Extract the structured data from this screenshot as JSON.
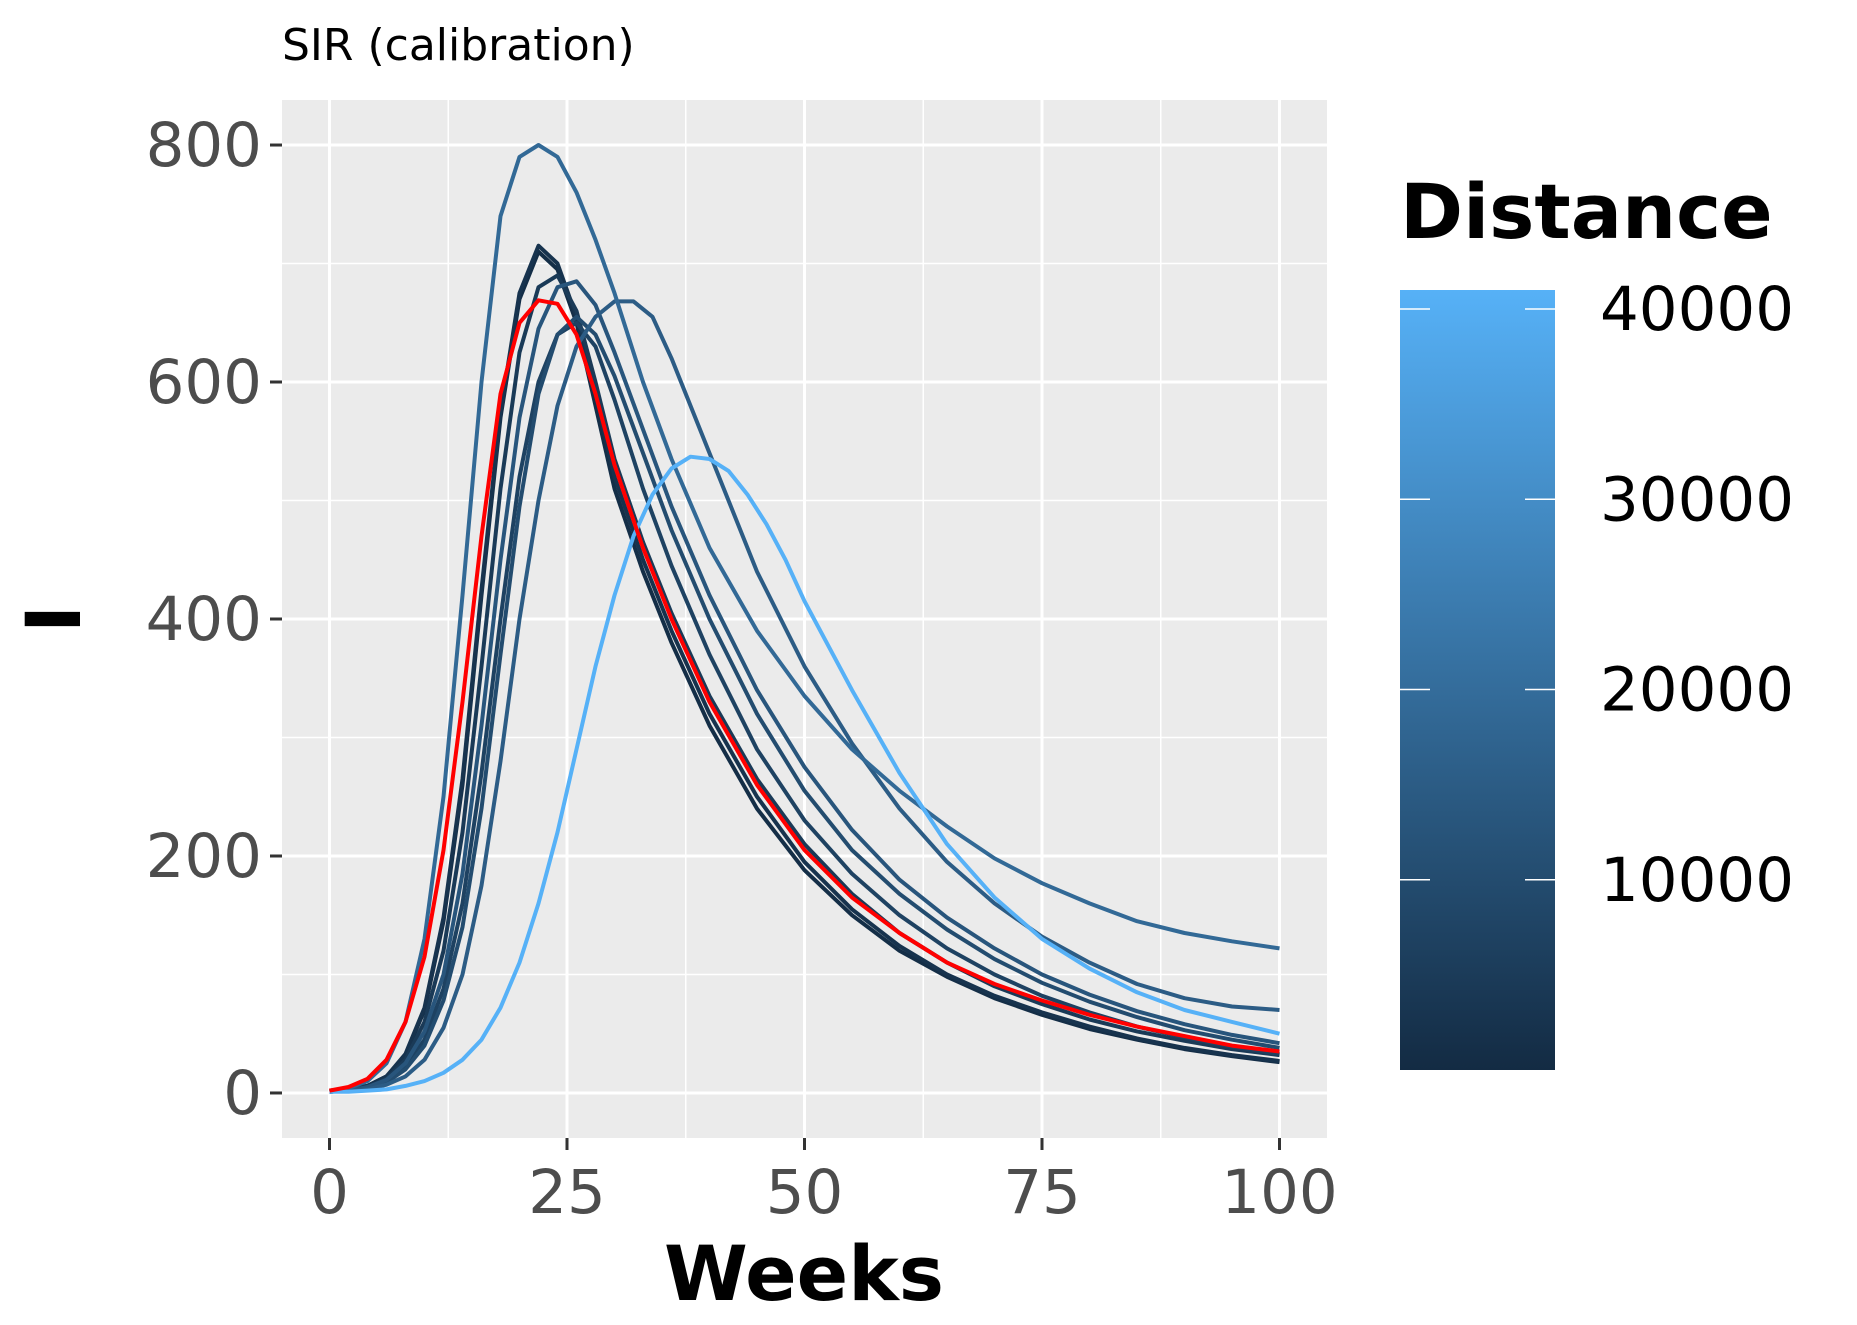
{
  "chart_data": {
    "type": "line",
    "title": "SIR (calibration)",
    "xlabel": "Weeks",
    "ylabel": "I",
    "xlim": [
      -5,
      105
    ],
    "ylim": [
      -38,
      838
    ],
    "x_ticks": [
      0,
      25,
      50,
      75,
      100
    ],
    "y_ticks": [
      0,
      200,
      400,
      600,
      800
    ],
    "grid": true,
    "legend": {
      "title": "Distance",
      "type": "colorbar",
      "position": "right",
      "range": [
        0,
        41000
      ],
      "ticks": [
        10000,
        20000,
        30000,
        40000
      ],
      "low_color": "#132B43",
      "high_color": "#56B1F7"
    },
    "series": [
      {
        "color": "#ff0000",
        "values": [
          [
            0,
            2
          ],
          [
            2,
            5
          ],
          [
            4,
            12
          ],
          [
            6,
            28
          ],
          [
            8,
            60
          ],
          [
            10,
            115
          ],
          [
            12,
            205
          ],
          [
            14,
            330
          ],
          [
            16,
            470
          ],
          [
            18,
            590
          ],
          [
            20,
            650
          ],
          [
            22,
            669
          ],
          [
            24,
            666
          ],
          [
            26,
            640
          ],
          [
            28,
            590
          ],
          [
            30,
            530
          ],
          [
            33,
            460
          ],
          [
            36,
            400
          ],
          [
            40,
            330
          ],
          [
            45,
            260
          ],
          [
            50,
            205
          ],
          [
            55,
            165
          ],
          [
            60,
            135
          ],
          [
            65,
            110
          ],
          [
            70,
            92
          ],
          [
            75,
            78
          ],
          [
            80,
            66
          ],
          [
            85,
            56
          ],
          [
            90,
            48
          ],
          [
            95,
            40
          ],
          [
            100,
            35
          ]
        ]
      },
      {
        "distance": 900,
        "values": [
          [
            0,
            2
          ],
          [
            2,
            3
          ],
          [
            4,
            6
          ],
          [
            6,
            14
          ],
          [
            8,
            32
          ],
          [
            10,
            70
          ],
          [
            12,
            145
          ],
          [
            14,
            260
          ],
          [
            16,
            420
          ],
          [
            18,
            570
          ],
          [
            20,
            670
          ],
          [
            22,
            710
          ],
          [
            24,
            695
          ],
          [
            26,
            650
          ],
          [
            28,
            580
          ],
          [
            30,
            510
          ],
          [
            33,
            440
          ],
          [
            36,
            380
          ],
          [
            40,
            310
          ],
          [
            45,
            240
          ],
          [
            50,
            188
          ],
          [
            55,
            150
          ],
          [
            60,
            120
          ],
          [
            65,
            98
          ],
          [
            70,
            80
          ],
          [
            75,
            66
          ],
          [
            80,
            54
          ],
          [
            85,
            45
          ],
          [
            90,
            37
          ],
          [
            95,
            31
          ],
          [
            100,
            26
          ]
        ]
      },
      {
        "distance": 2500,
        "values": [
          [
            0,
            2
          ],
          [
            2,
            3
          ],
          [
            4,
            6
          ],
          [
            6,
            14
          ],
          [
            8,
            33
          ],
          [
            10,
            72
          ],
          [
            12,
            148
          ],
          [
            14,
            265
          ],
          [
            16,
            425
          ],
          [
            18,
            575
          ],
          [
            20,
            675
          ],
          [
            22,
            715
          ],
          [
            24,
            700
          ],
          [
            26,
            655
          ],
          [
            28,
            590
          ],
          [
            30,
            520
          ],
          [
            33,
            450
          ],
          [
            36,
            390
          ],
          [
            40,
            320
          ],
          [
            45,
            250
          ],
          [
            50,
            195
          ],
          [
            55,
            155
          ],
          [
            60,
            124
          ],
          [
            65,
            100
          ],
          [
            70,
            82
          ],
          [
            75,
            68
          ],
          [
            80,
            56
          ],
          [
            85,
            46
          ],
          [
            90,
            38
          ],
          [
            95,
            32
          ],
          [
            100,
            27
          ]
        ]
      },
      {
        "distance": 4500,
        "values": [
          [
            0,
            1
          ],
          [
            2,
            2
          ],
          [
            4,
            5
          ],
          [
            6,
            12
          ],
          [
            8,
            28
          ],
          [
            10,
            60
          ],
          [
            12,
            120
          ],
          [
            14,
            220
          ],
          [
            16,
            360
          ],
          [
            18,
            510
          ],
          [
            20,
            625
          ],
          [
            22,
            680
          ],
          [
            24,
            690
          ],
          [
            26,
            660
          ],
          [
            28,
            600
          ],
          [
            30,
            535
          ],
          [
            33,
            465
          ],
          [
            36,
            405
          ],
          [
            40,
            335
          ],
          [
            45,
            265
          ],
          [
            50,
            210
          ],
          [
            55,
            168
          ],
          [
            60,
            135
          ],
          [
            65,
            110
          ],
          [
            70,
            90
          ],
          [
            75,
            75
          ],
          [
            80,
            62
          ],
          [
            85,
            52
          ],
          [
            90,
            44
          ],
          [
            95,
            37
          ],
          [
            100,
            32
          ]
        ]
      },
      {
        "distance": 7000,
        "values": [
          [
            0,
            1
          ],
          [
            2,
            2
          ],
          [
            4,
            4
          ],
          [
            6,
            10
          ],
          [
            8,
            22
          ],
          [
            10,
            45
          ],
          [
            12,
            88
          ],
          [
            14,
            160
          ],
          [
            16,
            270
          ],
          [
            18,
            400
          ],
          [
            20,
            520
          ],
          [
            22,
            600
          ],
          [
            24,
            640
          ],
          [
            26,
            650
          ],
          [
            28,
            630
          ],
          [
            30,
            585
          ],
          [
            33,
            510
          ],
          [
            36,
            445
          ],
          [
            40,
            370
          ],
          [
            45,
            290
          ],
          [
            50,
            230
          ],
          [
            55,
            185
          ],
          [
            60,
            150
          ],
          [
            65,
            122
          ],
          [
            70,
            100
          ],
          [
            75,
            82
          ],
          [
            80,
            68
          ],
          [
            85,
            56
          ],
          [
            90,
            47
          ],
          [
            95,
            39
          ],
          [
            100,
            33
          ]
        ]
      },
      {
        "distance": 10000,
        "values": [
          [
            0,
            1
          ],
          [
            2,
            2
          ],
          [
            4,
            4
          ],
          [
            6,
            9
          ],
          [
            8,
            20
          ],
          [
            10,
            40
          ],
          [
            12,
            78
          ],
          [
            14,
            140
          ],
          [
            16,
            240
          ],
          [
            18,
            370
          ],
          [
            20,
            495
          ],
          [
            22,
            590
          ],
          [
            24,
            640
          ],
          [
            26,
            655
          ],
          [
            28,
            640
          ],
          [
            30,
            605
          ],
          [
            33,
            540
          ],
          [
            36,
            475
          ],
          [
            40,
            400
          ],
          [
            45,
            320
          ],
          [
            50,
            255
          ],
          [
            55,
            205
          ],
          [
            60,
            168
          ],
          [
            65,
            138
          ],
          [
            70,
            113
          ],
          [
            75,
            93
          ],
          [
            80,
            77
          ],
          [
            85,
            64
          ],
          [
            90,
            53
          ],
          [
            95,
            45
          ],
          [
            100,
            38
          ]
        ]
      },
      {
        "distance": 13000,
        "values": [
          [
            0,
            1
          ],
          [
            2,
            2
          ],
          [
            4,
            5
          ],
          [
            6,
            11
          ],
          [
            8,
            25
          ],
          [
            10,
            52
          ],
          [
            12,
            100
          ],
          [
            14,
            185
          ],
          [
            16,
            310
          ],
          [
            18,
            450
          ],
          [
            20,
            570
          ],
          [
            22,
            645
          ],
          [
            24,
            680
          ],
          [
            26,
            685
          ],
          [
            28,
            665
          ],
          [
            30,
            625
          ],
          [
            33,
            560
          ],
          [
            36,
            495
          ],
          [
            40,
            420
          ],
          [
            45,
            340
          ],
          [
            50,
            275
          ],
          [
            55,
            222
          ],
          [
            60,
            180
          ],
          [
            65,
            148
          ],
          [
            70,
            122
          ],
          [
            75,
            100
          ],
          [
            80,
            83
          ],
          [
            85,
            69
          ],
          [
            90,
            58
          ],
          [
            95,
            49
          ],
          [
            100,
            42
          ]
        ]
      },
      {
        "distance": 15000,
        "values": [
          [
            0,
            1
          ],
          [
            2,
            2
          ],
          [
            4,
            3
          ],
          [
            6,
            7
          ],
          [
            8,
            14
          ],
          [
            10,
            28
          ],
          [
            12,
            55
          ],
          [
            14,
            100
          ],
          [
            16,
            175
          ],
          [
            18,
            280
          ],
          [
            20,
            400
          ],
          [
            22,
            500
          ],
          [
            24,
            580
          ],
          [
            26,
            630
          ],
          [
            28,
            655
          ],
          [
            30,
            668
          ],
          [
            32,
            668
          ],
          [
            34,
            655
          ],
          [
            36,
            620
          ],
          [
            40,
            540
          ],
          [
            45,
            440
          ],
          [
            50,
            360
          ],
          [
            55,
            295
          ],
          [
            60,
            240
          ],
          [
            65,
            195
          ],
          [
            70,
            160
          ],
          [
            75,
            132
          ],
          [
            80,
            110
          ],
          [
            85,
            92
          ],
          [
            90,
            80
          ],
          [
            95,
            73
          ],
          [
            100,
            70
          ]
        ]
      },
      {
        "distance": 19000,
        "values": [
          [
            0,
            2
          ],
          [
            2,
            4
          ],
          [
            4,
            10
          ],
          [
            6,
            25
          ],
          [
            8,
            60
          ],
          [
            10,
            130
          ],
          [
            12,
            250
          ],
          [
            14,
            420
          ],
          [
            16,
            600
          ],
          [
            18,
            740
          ],
          [
            20,
            790
          ],
          [
            22,
            800
          ],
          [
            24,
            790
          ],
          [
            26,
            760
          ],
          [
            28,
            720
          ],
          [
            30,
            675
          ],
          [
            33,
            600
          ],
          [
            36,
            535
          ],
          [
            40,
            460
          ],
          [
            45,
            390
          ],
          [
            50,
            335
          ],
          [
            55,
            290
          ],
          [
            60,
            255
          ],
          [
            65,
            225
          ],
          [
            70,
            198
          ],
          [
            75,
            177
          ],
          [
            80,
            160
          ],
          [
            85,
            145
          ],
          [
            90,
            135
          ],
          [
            95,
            128
          ],
          [
            100,
            122
          ]
        ]
      },
      {
        "distance": 41000,
        "values": [
          [
            0,
            1
          ],
          [
            2,
            1
          ],
          [
            4,
            2
          ],
          [
            6,
            3
          ],
          [
            8,
            6
          ],
          [
            10,
            10
          ],
          [
            12,
            17
          ],
          [
            14,
            28
          ],
          [
            16,
            45
          ],
          [
            18,
            72
          ],
          [
            20,
            110
          ],
          [
            22,
            160
          ],
          [
            24,
            220
          ],
          [
            26,
            290
          ],
          [
            28,
            360
          ],
          [
            30,
            420
          ],
          [
            32,
            470
          ],
          [
            34,
            505
          ],
          [
            36,
            527
          ],
          [
            38,
            537
          ],
          [
            40,
            535
          ],
          [
            42,
            525
          ],
          [
            44,
            505
          ],
          [
            46,
            480
          ],
          [
            48,
            450
          ],
          [
            50,
            415
          ],
          [
            55,
            340
          ],
          [
            60,
            270
          ],
          [
            65,
            210
          ],
          [
            70,
            165
          ],
          [
            75,
            130
          ],
          [
            80,
            105
          ],
          [
            85,
            85
          ],
          [
            90,
            70
          ],
          [
            95,
            60
          ],
          [
            100,
            50
          ]
        ]
      }
    ]
  }
}
